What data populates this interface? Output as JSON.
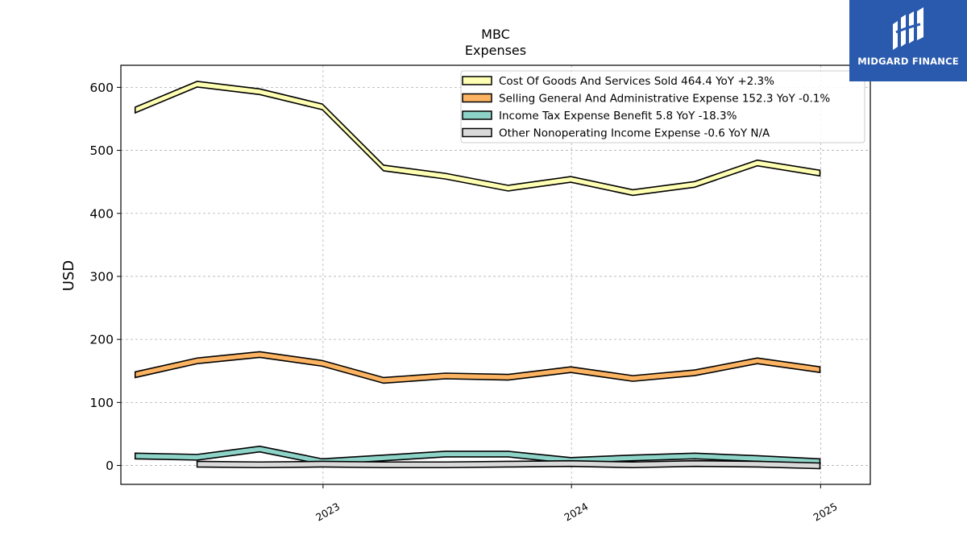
{
  "brand": {
    "name": "MIDGARD FINANCE",
    "bg_color": "#2a5aad"
  },
  "chart_data": {
    "type": "area",
    "title": "MBC",
    "subtitle": "Expenses",
    "xlabel": "",
    "ylabel": "USD",
    "ylim": [
      -30,
      635
    ],
    "xlim": [
      "2022-03-10",
      "2025-03-15"
    ],
    "yticks": [
      0,
      100,
      200,
      300,
      400,
      500,
      600
    ],
    "xticks": [
      {
        "label": "2023",
        "date": "2023-01-01"
      },
      {
        "label": "2024",
        "date": "2024-01-01"
      },
      {
        "label": "2025",
        "date": "2025-01-01"
      }
    ],
    "grid": true,
    "legend_position": "top-right",
    "series": [
      {
        "name": "Cost Of Goods And Services Sold  464.4 YoY +2.3%",
        "color": "#ffffb3",
        "x": [
          "2022-03-31",
          "2022-06-30",
          "2022-09-30",
          "2022-12-31",
          "2023-03-31",
          "2023-06-30",
          "2023-09-30",
          "2023-12-31",
          "2024-03-31",
          "2024-06-30",
          "2024-09-30",
          "2024-12-31"
        ],
        "values": [
          564,
          605,
          593,
          569,
          472,
          459,
          440,
          454,
          433,
          446,
          480,
          464
        ]
      },
      {
        "name": "Selling General And Administrative Expense  152.3 YoY -0.1%",
        "color": "#fdb462",
        "x": [
          "2022-03-31",
          "2022-06-30",
          "2022-09-30",
          "2022-12-31",
          "2023-03-31",
          "2023-06-30",
          "2023-09-30",
          "2023-12-31",
          "2024-03-31",
          "2024-06-30",
          "2024-09-30",
          "2024-12-31"
        ],
        "values": [
          144,
          166,
          176,
          162,
          135,
          142,
          140,
          152,
          138,
          147,
          166,
          152
        ]
      },
      {
        "name": "Income Tax Expense Benefit  5.8 YoY -18.3%",
        "color": "#8dd3c7",
        "x": [
          "2022-03-31",
          "2022-06-30",
          "2022-09-30",
          "2022-12-31",
          "2023-03-31",
          "2023-06-30",
          "2023-09-30",
          "2023-12-31",
          "2024-03-31",
          "2024-06-30",
          "2024-09-30",
          "2024-12-31"
        ],
        "values": [
          15,
          13,
          26,
          6,
          12,
          18,
          18,
          8,
          12,
          15,
          11,
          6
        ]
      },
      {
        "name": "Other Nonoperating Income Expense  -0.6 YoY N/A",
        "color": "#d9d9d9",
        "x": [
          "2022-06-30",
          "2022-09-30",
          "2022-12-31",
          "2023-03-31",
          "2023-06-30",
          "2023-09-30",
          "2023-12-31",
          "2024-03-31",
          "2024-06-30",
          "2024-09-30",
          "2024-12-31"
        ],
        "values": [
          2,
          1,
          2,
          1,
          1,
          2,
          3,
          1,
          3,
          2,
          -0.6
        ]
      }
    ]
  }
}
